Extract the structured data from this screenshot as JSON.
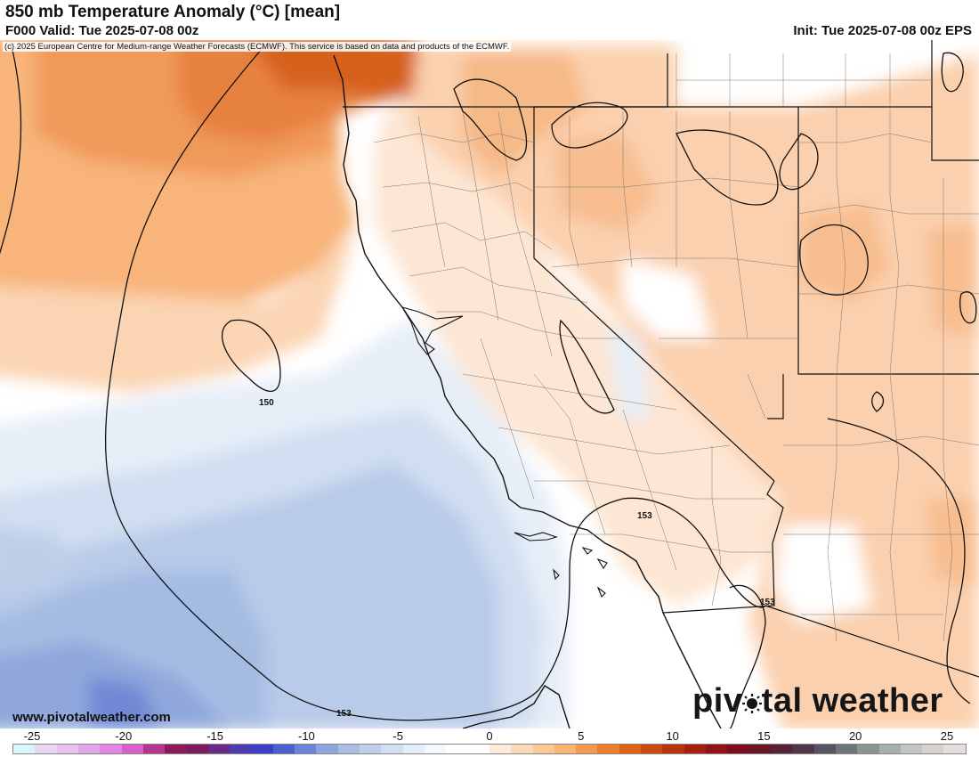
{
  "header": {
    "title": "850 mb Temperature Anomaly (°C) [mean]",
    "valid": "F000 Valid: Tue 2025-07-08 00z",
    "init": "Init: Tue 2025-07-08 00z EPS"
  },
  "copyright": "(c) 2025 European Centre for Medium-range Weather Forecasts (ECMWF). This service is based on data and products of the ECMWF.",
  "footer": {
    "website": "www.pivotalweather.com",
    "logo_pre": "piv",
    "logo_post": "tal weather"
  },
  "contour_labels": [
    "150",
    "153",
    "153",
    "153"
  ],
  "colorbar": {
    "ticks": [
      "-25",
      "-20",
      "-15",
      "-10",
      "-5",
      "0",
      "5",
      "10",
      "15",
      "20",
      "25"
    ],
    "colors": [
      "#d7f6fb",
      "#e9d8f2",
      "#e6c1ee",
      "#e4a6ea",
      "#e286e4",
      "#d95fc9",
      "#b7348c",
      "#8d1b5b",
      "#7a1b5e",
      "#6a2a8a",
      "#4c3cae",
      "#3d3fc9",
      "#4a5fd0",
      "#6a84d7",
      "#8da4dd",
      "#a9bde3",
      "#bfcfe9",
      "#d2dff1",
      "#e4edf8",
      "#f4f8fc",
      "#ffffff",
      "#ffffff",
      "#fdebd9",
      "#fcd9b8",
      "#fbc794",
      "#f9b472",
      "#f59b4f",
      "#ee7f30",
      "#de6218",
      "#c94a0e",
      "#b8340c",
      "#a5200e",
      "#921219",
      "#7e0e1f",
      "#6a1526",
      "#552236",
      "#4f3547",
      "#565463",
      "#6d7677",
      "#8a9590",
      "#a6b0aa",
      "#c0c6c1",
      "#d6d2cf",
      "#e5dedc"
    ]
  }
}
